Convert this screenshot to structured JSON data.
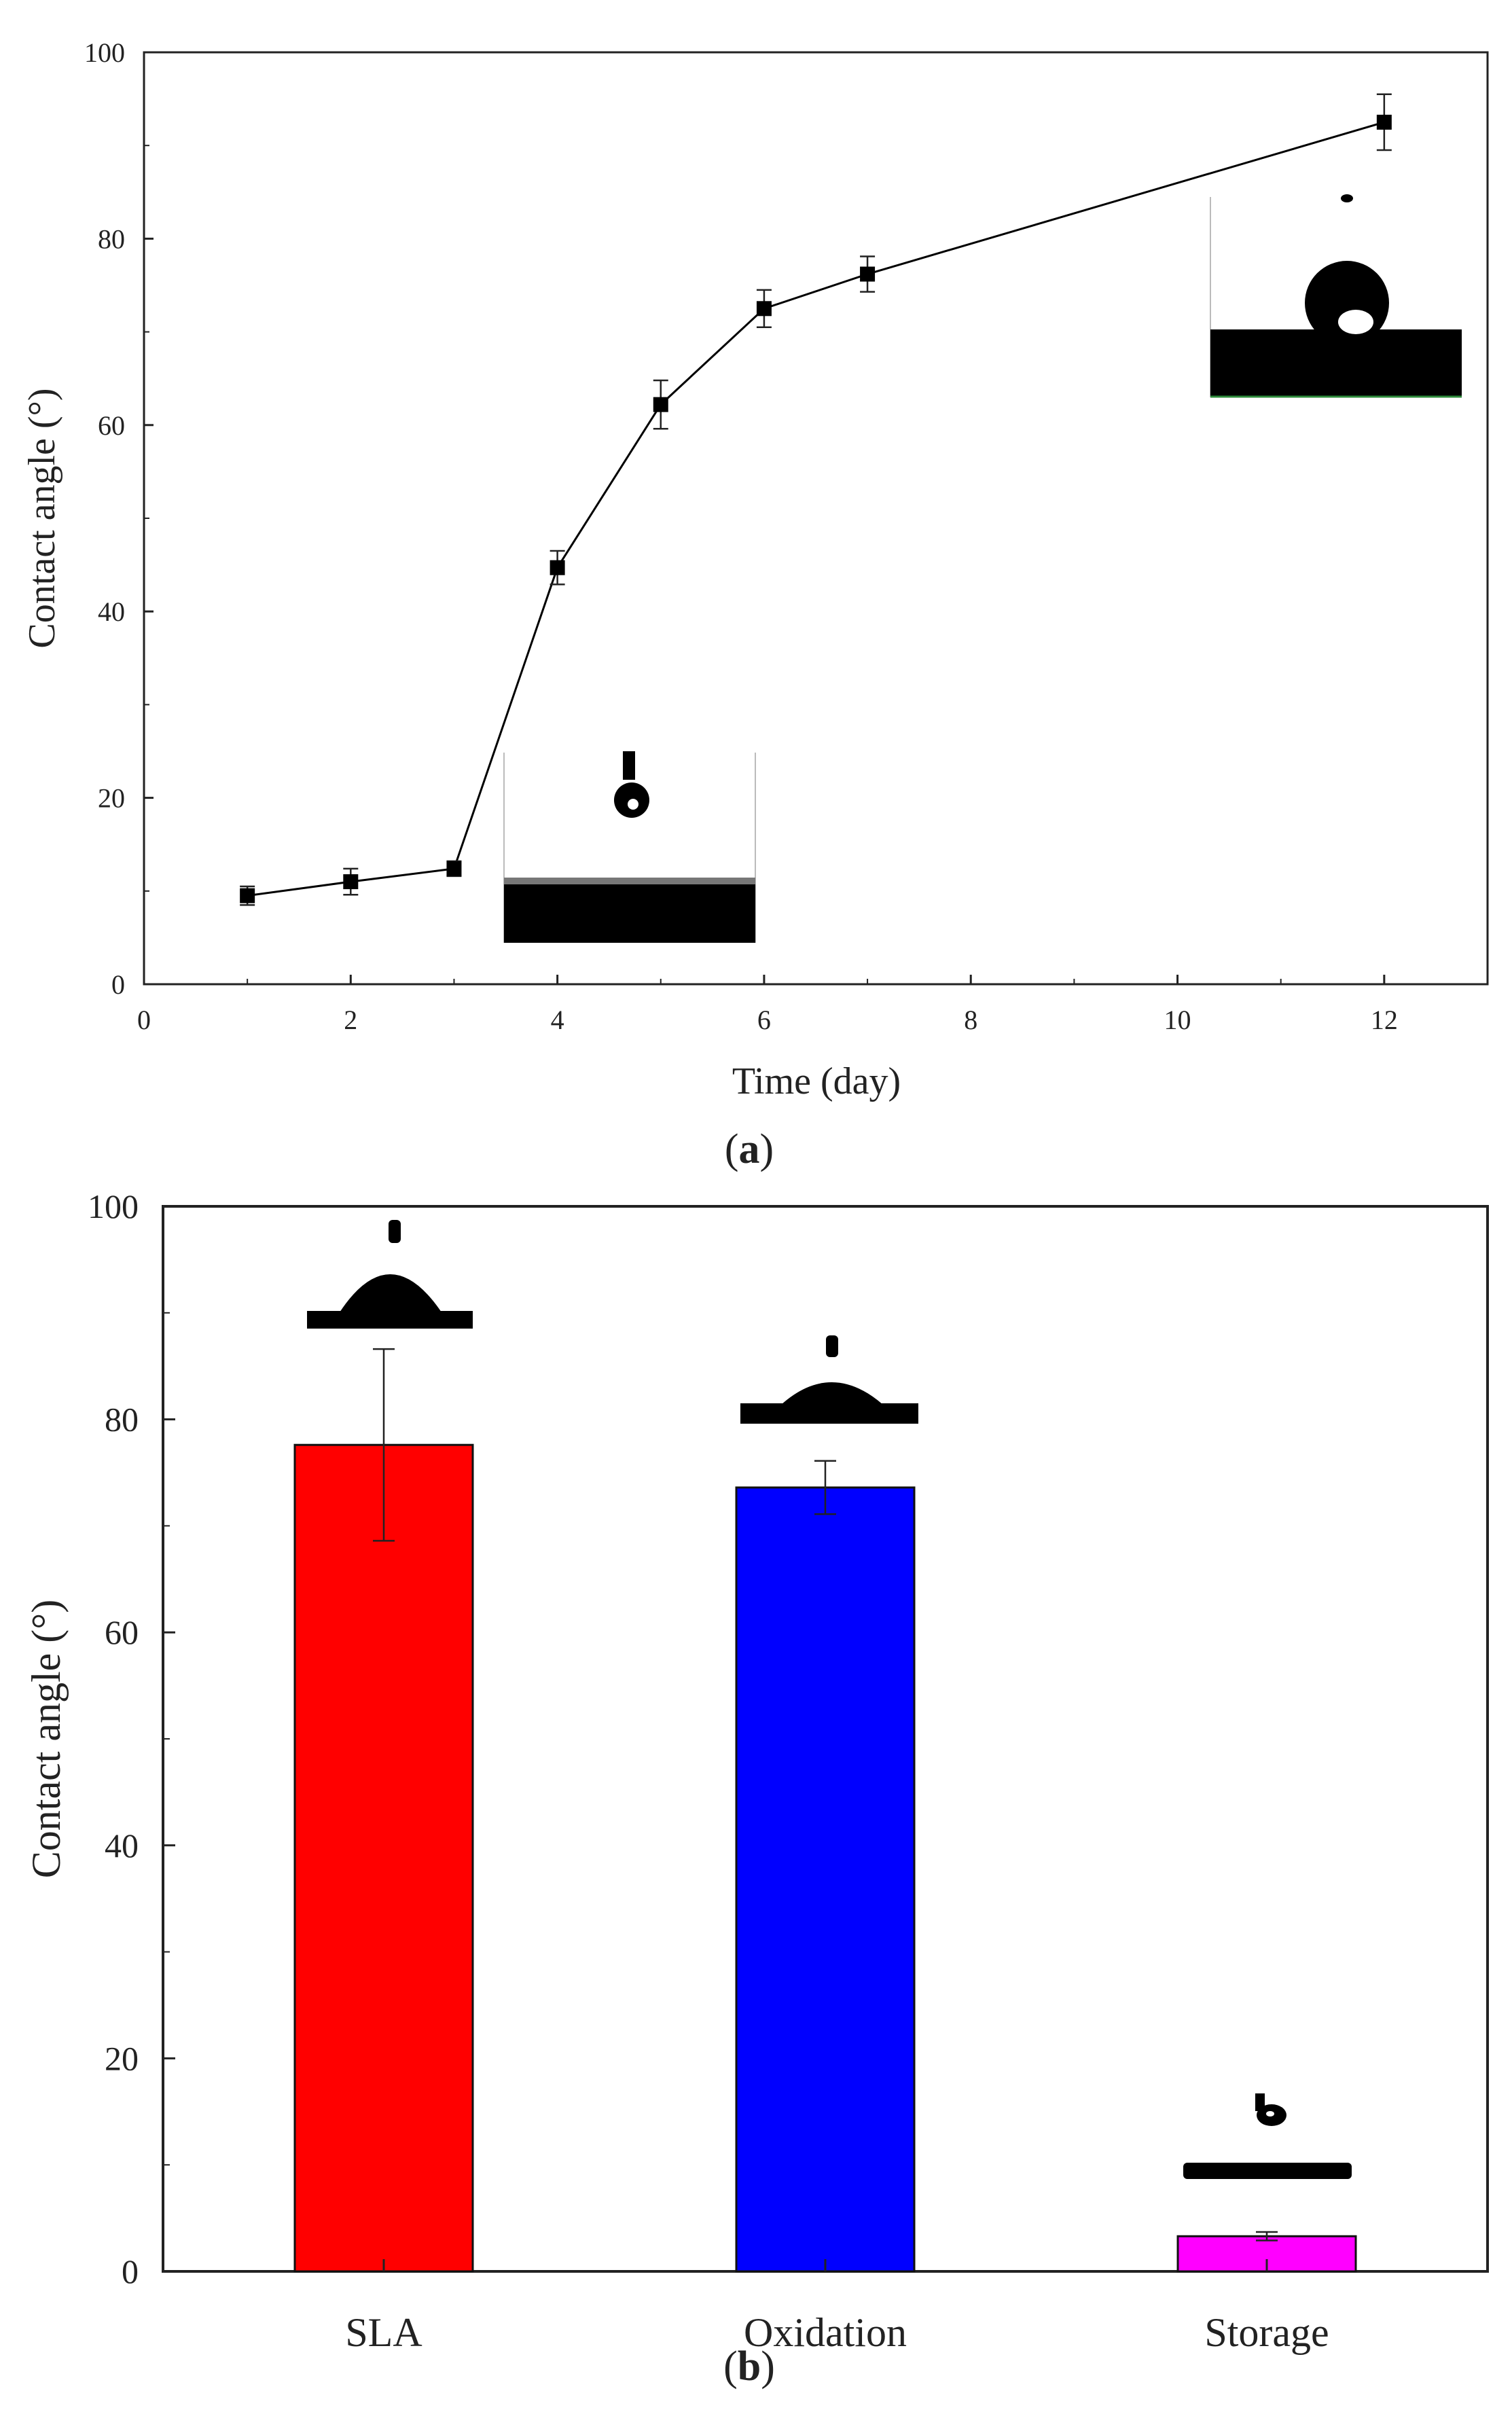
{
  "chart_data": [
    {
      "panel": "a",
      "type": "line",
      "xlabel": "Time (day)",
      "ylabel": "Contact angle (°)",
      "xlim": [
        0,
        13
      ],
      "ylim": [
        0,
        100
      ],
      "xticks": [
        0,
        2,
        4,
        6,
        8,
        10,
        12
      ],
      "yticks": [
        0,
        20,
        40,
        60,
        80,
        100
      ],
      "series": [
        {
          "name": "Contact angle",
          "color": "#000000",
          "marker": "square",
          "x": [
            1,
            2,
            3,
            4,
            5,
            6,
            7,
            12
          ],
          "y": [
            9.5,
            11,
            12.4,
            44.7,
            62.2,
            72.5,
            76.2,
            92.5
          ],
          "err": [
            1.0,
            1.4,
            0.8,
            1.8,
            2.6,
            2.0,
            1.9,
            3.0
          ]
        }
      ],
      "annotations": [
        "droplet image inset at ~day 4-6 (low angle)",
        "droplet image inset at ~day 12 (high angle)"
      ]
    },
    {
      "panel": "b",
      "type": "bar",
      "xlabel": "",
      "ylabel": "Contact angle (°)",
      "ylim": [
        0,
        100
      ],
      "yticks": [
        0,
        20,
        40,
        60,
        80,
        100
      ],
      "categories": [
        "SLA",
        "Oxidation",
        "Storage"
      ],
      "values": [
        77.6,
        73.6,
        3.3
      ],
      "errors": [
        9.0,
        2.5,
        0.4
      ],
      "colors": [
        "#ff0000",
        "#0000ff",
        "#ff00ff"
      ],
      "annotations": [
        "droplet image above each bar"
      ]
    }
  ],
  "captions": {
    "a": "a",
    "b": "b"
  }
}
